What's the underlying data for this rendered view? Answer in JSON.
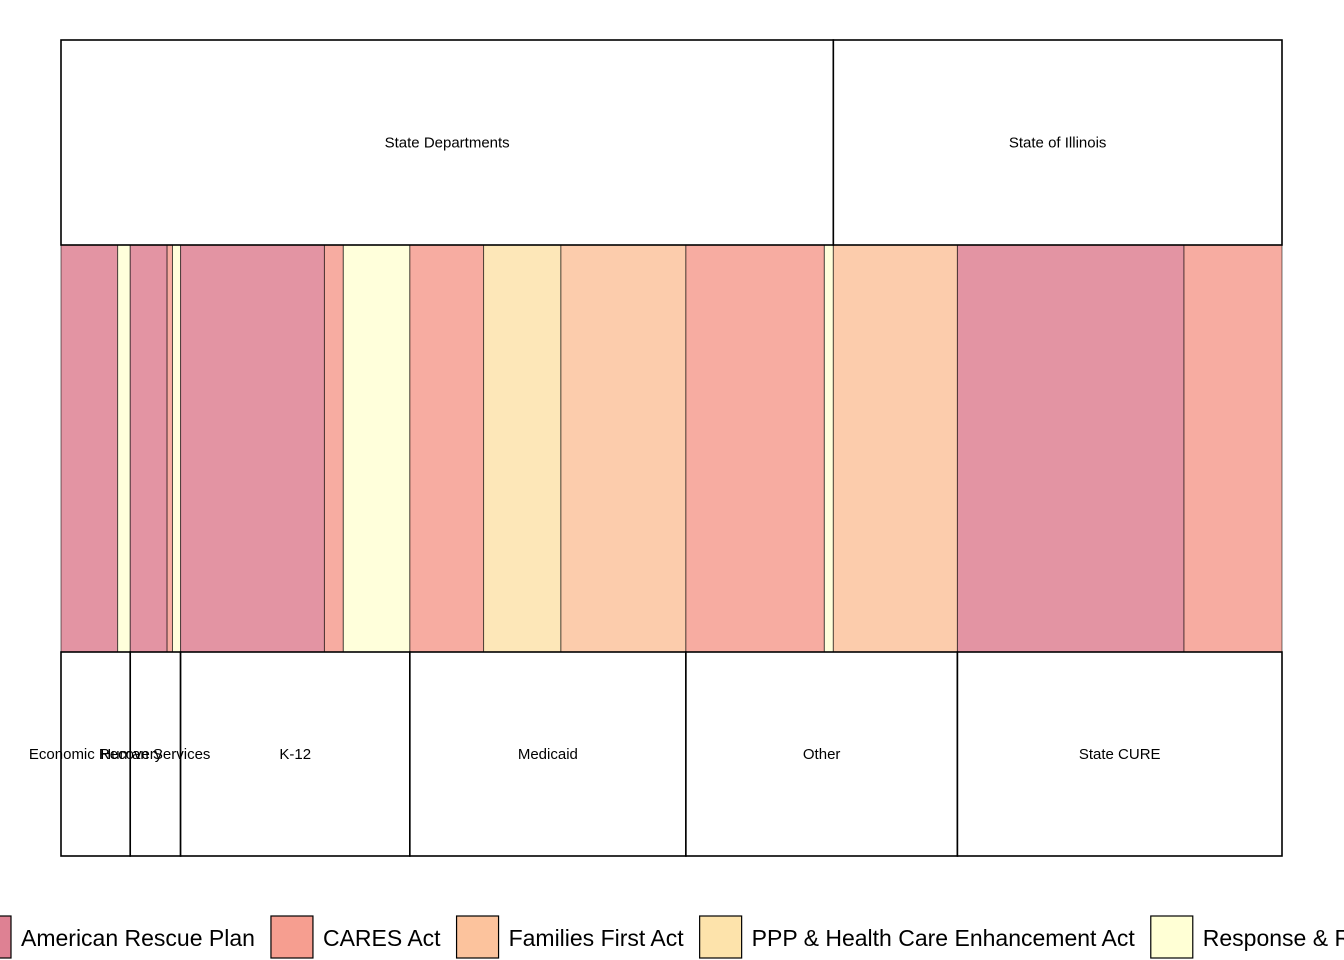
{
  "chart_data": {
    "type": "alluvial",
    "axis_top": {
      "categories": [
        "State Departments",
        "State of Illinois"
      ]
    },
    "axis_bottom": {
      "categories": [
        "Economic Recovery",
        "Human Services",
        "K-12",
        "Medicaid",
        "Other",
        "State CURE"
      ]
    },
    "funds": [
      {
        "name": "American Rescue Plan",
        "color": "#de8193"
      },
      {
        "name": "CARES Act",
        "color": "#f69e90"
      },
      {
        "name": "Families First Act",
        "color": "#fcc39d"
      },
      {
        "name": "PPP & Health Care Enhancement Act",
        "color": "#fde3ab"
      },
      {
        "name": "Response & Relief Act",
        "color": "#ffffd5"
      }
    ],
    "flows": [
      {
        "source": "State Departments",
        "target": "Economic Recovery",
        "fund": "American Rescue Plan",
        "value": 63
      },
      {
        "source": "State Departments",
        "target": "Economic Recovery",
        "fund": "Response & Relief Act",
        "value": 14
      },
      {
        "source": "State Departments",
        "target": "Human Services",
        "fund": "American Rescue Plan",
        "value": 41
      },
      {
        "source": "State Departments",
        "target": "Human Services",
        "fund": "CARES Act",
        "value": 6
      },
      {
        "source": "State Departments",
        "target": "Human Services",
        "fund": "Response & Relief Act",
        "value": 9
      },
      {
        "source": "State Departments",
        "target": "K-12",
        "fund": "American Rescue Plan",
        "value": 160
      },
      {
        "source": "State Departments",
        "target": "K-12",
        "fund": "CARES Act",
        "value": 21
      },
      {
        "source": "State Departments",
        "target": "K-12",
        "fund": "Response & Relief Act",
        "value": 74
      },
      {
        "source": "State Departments",
        "target": "Medicaid",
        "fund": "CARES Act",
        "value": 82
      },
      {
        "source": "State Departments",
        "target": "Medicaid",
        "fund": "PPP & Health Care Enhancement Act",
        "value": 86
      },
      {
        "source": "State Departments",
        "target": "Medicaid",
        "fund": "Families First Act",
        "value": 139
      },
      {
        "source": "State Departments",
        "target": "Other",
        "fund": "CARES Act",
        "value": 154
      },
      {
        "source": "State Departments",
        "target": "Other",
        "fund": "Response & Relief Act",
        "value": 10
      },
      {
        "source": "State of Illinois",
        "target": "Other",
        "fund": "Families First Act",
        "value": 138
      },
      {
        "source": "State of Illinois",
        "target": "State CURE",
        "fund": "American Rescue Plan",
        "value": 252
      },
      {
        "source": "State of Illinois",
        "target": "State CURE",
        "fund": "CARES Act",
        "value": 109
      }
    ]
  }
}
